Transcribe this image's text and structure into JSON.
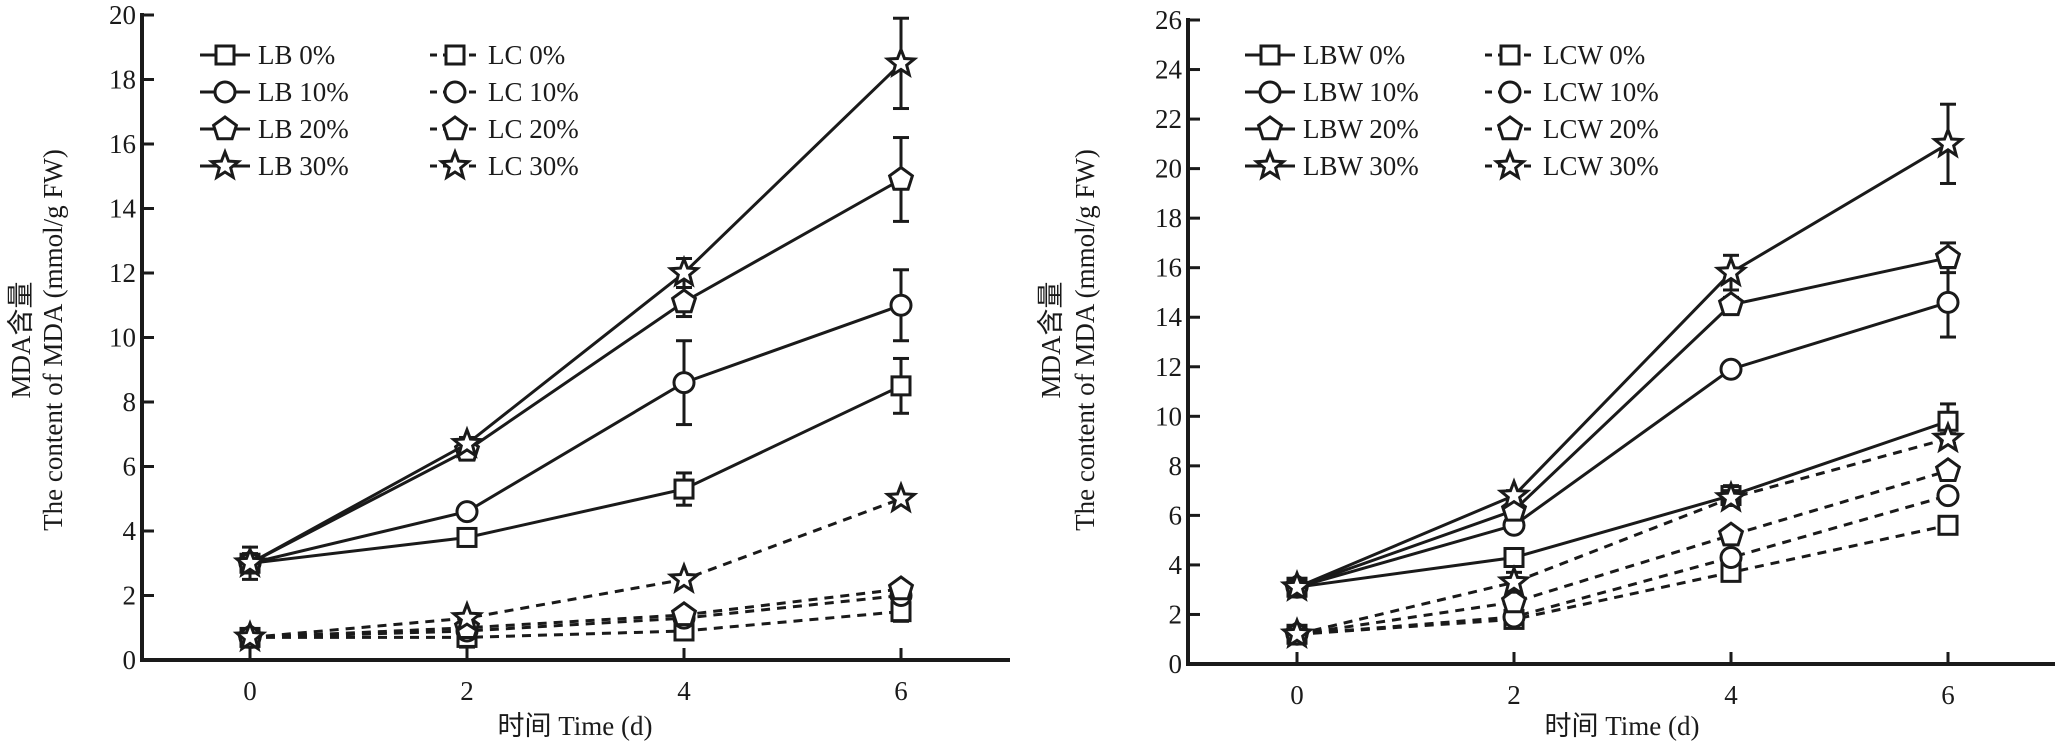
{
  "chart_data": [
    {
      "type": "line",
      "title": "",
      "xlabel": "时间 Time (d)",
      "ylabel_cn": "MDA含量",
      "ylabel_en": "The content of MDA (mmol/g FW)",
      "x": [
        0,
        2,
        4,
        6
      ],
      "x_ticks": [
        "0",
        "2",
        "4",
        "6"
      ],
      "xlim": [
        -1.5,
        8.4
      ],
      "ylim": [
        0,
        20
      ],
      "y_ticks": [
        "0",
        "2",
        "4",
        "6",
        "8",
        "10",
        "12",
        "14",
        "16",
        "18",
        "20"
      ],
      "grid": false,
      "legend_position": "top-left",
      "series": [
        {
          "name": "LB 0%",
          "marker": "square",
          "line": "solid",
          "values": [
            3.0,
            3.8,
            5.3,
            8.5
          ],
          "errors": [
            0.2,
            0.15,
            0.5,
            0.85
          ]
        },
        {
          "name": "LB 10%",
          "marker": "circle",
          "line": "solid",
          "values": [
            3.0,
            4.6,
            8.6,
            11.0
          ],
          "errors": [
            0.2,
            0.15,
            1.3,
            1.1
          ]
        },
        {
          "name": "LB 20%",
          "marker": "pentagon",
          "line": "solid",
          "values": [
            3.0,
            6.5,
            11.1,
            14.9
          ],
          "errors": [
            0.3,
            0.2,
            0.45,
            1.3
          ]
        },
        {
          "name": "LB 30%",
          "marker": "star",
          "line": "solid",
          "values": [
            3.0,
            6.7,
            12.0,
            18.5
          ],
          "errors": [
            0.5,
            0.2,
            0.45,
            1.4
          ]
        },
        {
          "name": "LC 0%",
          "marker": "square",
          "line": "dashed",
          "values": [
            0.7,
            0.7,
            0.9,
            1.5
          ],
          "errors": [
            0.05,
            0.3,
            0.2,
            0.3
          ]
        },
        {
          "name": "LC 10%",
          "marker": "circle",
          "line": "dashed",
          "values": [
            0.7,
            0.9,
            1.3,
            2.0
          ],
          "errors": [
            0.05,
            0.1,
            0.1,
            0.2
          ]
        },
        {
          "name": "LC 20%",
          "marker": "pentagon",
          "line": "dashed",
          "values": [
            0.7,
            1.0,
            1.4,
            2.2
          ],
          "errors": [
            0.05,
            0.1,
            0.1,
            0.1
          ]
        },
        {
          "name": "LC 30%",
          "marker": "star",
          "line": "dashed",
          "values": [
            0.7,
            1.3,
            2.5,
            5.0
          ],
          "errors": [
            0.05,
            0.1,
            0.1,
            0.1
          ]
        }
      ]
    },
    {
      "type": "line",
      "title": "",
      "xlabel": "时间 Time (d)",
      "ylabel_cn": "MDA含量",
      "ylabel_en": "The content of MDA (mmol/g FW)",
      "x": [
        0,
        2,
        4,
        6
      ],
      "x_ticks": [
        "0",
        "2",
        "4",
        "6"
      ],
      "xlim": [
        -1.5,
        8.4
      ],
      "ylim": [
        0,
        26
      ],
      "y_ticks": [
        "0",
        "2",
        "4",
        "6",
        "8",
        "10",
        "12",
        "14",
        "16",
        "18",
        "20",
        "22",
        "24",
        "26"
      ],
      "grid": false,
      "legend_position": "top-left",
      "series": [
        {
          "name": "LBW 0%",
          "marker": "square",
          "line": "solid",
          "values": [
            3.1,
            4.3,
            6.8,
            9.8
          ],
          "errors": [
            0.2,
            0.1,
            0.4,
            0.7
          ]
        },
        {
          "name": "LBW 10%",
          "marker": "circle",
          "line": "solid",
          "values": [
            3.1,
            5.6,
            11.9,
            14.6
          ],
          "errors": [
            0.2,
            0.2,
            0.1,
            1.4
          ]
        },
        {
          "name": "LBW 20%",
          "marker": "pentagon",
          "line": "solid",
          "values": [
            3.1,
            6.2,
            14.5,
            16.4
          ],
          "errors": [
            0.2,
            0.2,
            0.3,
            0.6
          ]
        },
        {
          "name": "LBW 30%",
          "marker": "star",
          "line": "solid",
          "values": [
            3.1,
            6.8,
            15.8,
            21.0
          ],
          "errors": [
            0.3,
            0.2,
            0.7,
            1.6
          ]
        },
        {
          "name": "LCW 0%",
          "marker": "square",
          "line": "dashed",
          "values": [
            1.2,
            1.8,
            3.7,
            5.6
          ],
          "errors": [
            0.1,
            0.2,
            0.2,
            0.1
          ]
        },
        {
          "name": "LCW 10%",
          "marker": "circle",
          "line": "dashed",
          "values": [
            1.2,
            1.9,
            4.3,
            6.8
          ],
          "errors": [
            0.1,
            0.2,
            0.2,
            0.1
          ]
        },
        {
          "name": "LCW 20%",
          "marker": "pentagon",
          "line": "dashed",
          "values": [
            1.2,
            2.5,
            5.2,
            7.8
          ],
          "errors": [
            0.1,
            0.2,
            0.2,
            0.2
          ]
        },
        {
          "name": "LCW 30%",
          "marker": "star",
          "line": "dashed",
          "values": [
            1.2,
            3.3,
            6.7,
            9.1
          ],
          "errors": [
            0.1,
            0.4,
            0.3,
            0.2
          ]
        }
      ]
    }
  ],
  "colors": {
    "ink": "#1a1a1a",
    "background": "#ffffff",
    "marker_fill": "#ffffff"
  }
}
